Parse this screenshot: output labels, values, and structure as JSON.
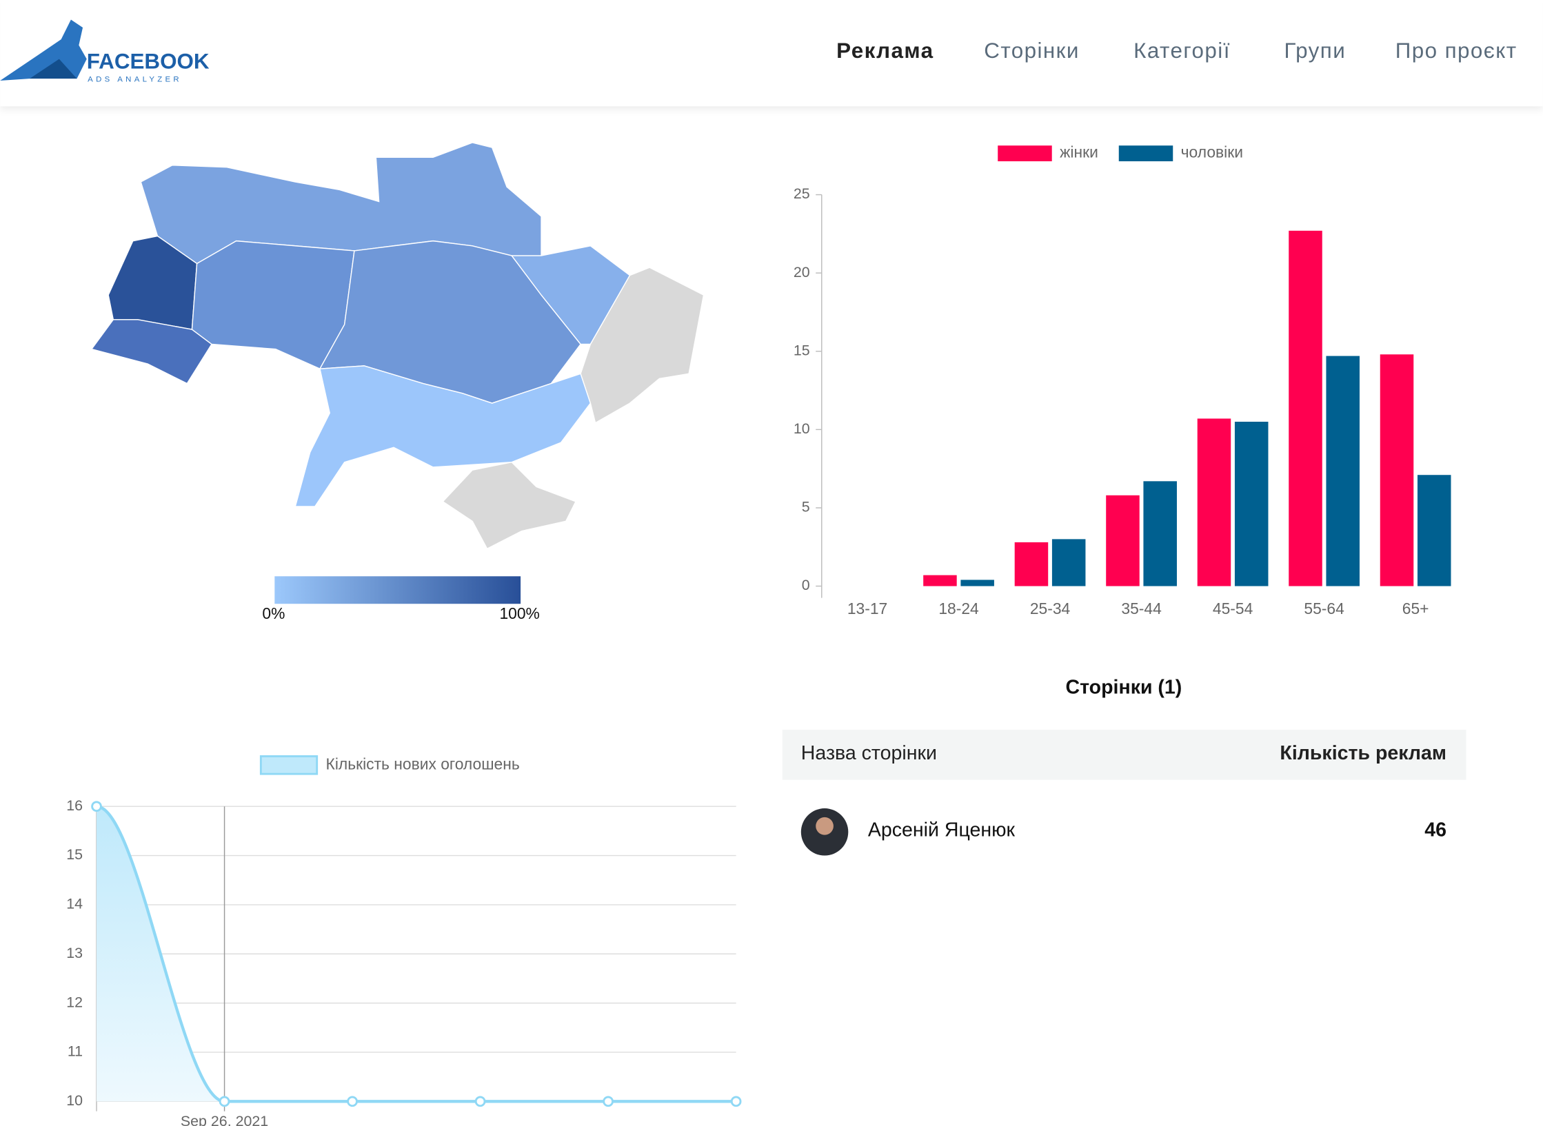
{
  "logo": {
    "title": "FACEBOOK",
    "subtitle": "ADS ANALYZER"
  },
  "nav": {
    "items": [
      "Реклама",
      "Сторінки",
      "Категорії",
      "Групи",
      "Про проєкт"
    ],
    "active": 0
  },
  "map": {
    "legend_min": "0%",
    "legend_max": "100%"
  },
  "chart_data": [
    {
      "type": "bar",
      "categories": [
        "13-17",
        "18-24",
        "25-34",
        "35-44",
        "45-54",
        "55-64",
        "65+"
      ],
      "series": [
        {
          "name": "жінки",
          "color": "#ff0050",
          "values": [
            0,
            0.7,
            2.8,
            5.8,
            10.7,
            22.7,
            14.8
          ]
        },
        {
          "name": "чоловіки",
          "color": "#006090",
          "values": [
            0,
            0.4,
            3.0,
            6.7,
            10.5,
            14.7,
            7.1
          ]
        }
      ],
      "ylim": [
        0,
        25
      ],
      "yticks": [
        0,
        5,
        10,
        15,
        20,
        25
      ],
      "legend": "top",
      "grid": false
    },
    {
      "type": "line",
      "categories": [
        null,
        "Sep 26, 2021",
        null,
        null,
        null,
        null
      ],
      "series": [
        {
          "name": "Кількість нових оголошень",
          "color": "#8fd8f5",
          "values": [
            16,
            10,
            10,
            10,
            10,
            10
          ]
        }
      ],
      "ylim": [
        10,
        16
      ],
      "yticks": [
        10,
        11,
        12,
        13,
        14,
        15,
        16
      ],
      "legend": "top",
      "grid": true,
      "fill": true
    }
  ],
  "table": {
    "title": "Сторінки (1)",
    "header": [
      "Назва сторінки",
      "Кількість реклам"
    ],
    "rows": [
      [
        "Арсеній Яценюк",
        46
      ]
    ]
  }
}
